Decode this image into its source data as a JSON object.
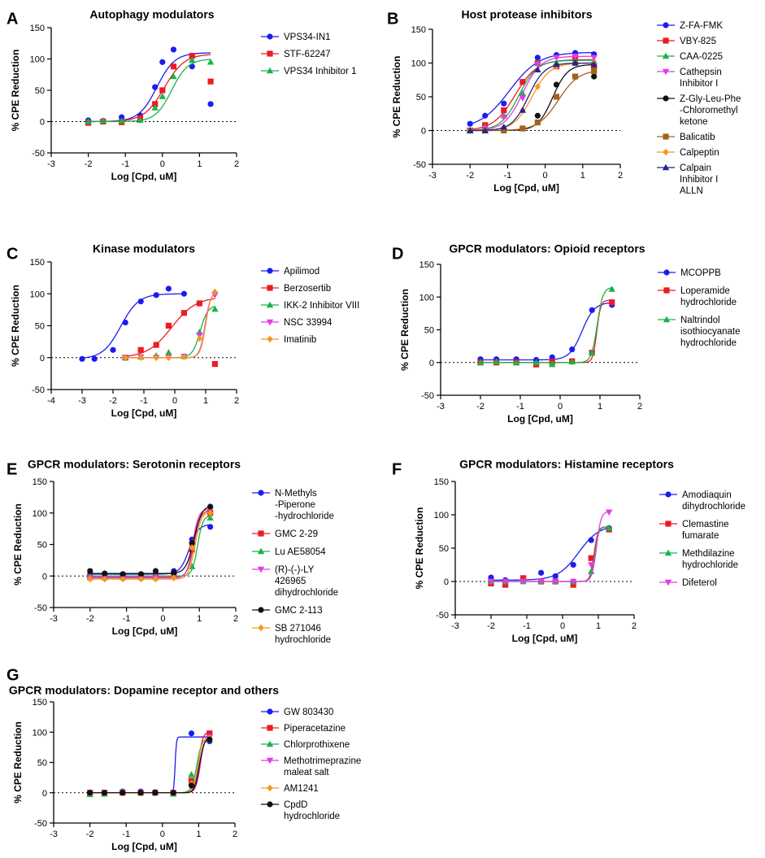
{
  "figure": {
    "colors": {
      "blue": "#1c1cf0",
      "red": "#ec1c24",
      "green": "#1ab24b",
      "magenta": "#e23be6",
      "black": "#111111",
      "brown": "#a3621d",
      "orange": "#f5961e",
      "navy": "#24248a"
    }
  },
  "chart_data": [
    {
      "type": "scatter",
      "panel": "A",
      "title": "Autophagy modulators",
      "xlabel": "Log [Cpd, uM]",
      "ylabel": "% CPE Reduction",
      "xlim": [
        -3,
        2
      ],
      "ylim": [
        -50,
        150
      ],
      "xticks": [
        -3,
        -2,
        -1,
        0,
        1,
        2
      ],
      "yticks": [
        -50,
        0,
        50,
        100,
        150
      ],
      "x": [
        -2.0,
        -1.6,
        -1.1,
        -0.6,
        -0.2,
        0.0,
        0.3,
        0.8,
        1.3
      ],
      "series": [
        {
          "name": "VPS34-IN1",
          "color": "blue",
          "marker": "circle",
          "values": [
            2,
            1,
            7,
            10,
            55,
            95,
            115,
            88,
            28
          ],
          "fit": {
            "bottom": 0,
            "top": 110,
            "ec50": -0.15,
            "hill": 1.8
          }
        },
        {
          "name": "STF-62247",
          "color": "red",
          "marker": "square",
          "values": [
            -2,
            0,
            -1,
            5,
            28,
            50,
            88,
            105,
            64
          ],
          "fit": {
            "bottom": 0,
            "top": 108,
            "ec50": 0.05,
            "hill": 1.6
          }
        },
        {
          "name": "VPS34 Inhibitor 1",
          "color": "green",
          "marker": "triangle",
          "values": [
            0,
            1,
            1,
            2,
            22,
            40,
            72,
            98,
            95
          ],
          "fit": {
            "bottom": 0,
            "top": 100,
            "ec50": 0.25,
            "hill": 2.0
          }
        }
      ]
    },
    {
      "type": "scatter",
      "panel": "B",
      "title": "Host protease inhibitors",
      "xlabel": "Log [Cpd, uM]",
      "ylabel": "% CPE Reduction",
      "xlim": [
        -3,
        2
      ],
      "ylim": [
        -50,
        150
      ],
      "xticks": [
        -3,
        -2,
        -1,
        0,
        1,
        2
      ],
      "yticks": [
        -50,
        0,
        50,
        100,
        150
      ],
      "x": [
        -2.0,
        -1.6,
        -1.1,
        -0.6,
        -0.2,
        0.3,
        0.8,
        1.3
      ],
      "series": [
        {
          "name": "Z-FA-FMK",
          "color": "blue",
          "marker": "circle",
          "values": [
            10,
            22,
            40,
            72,
            108,
            112,
            115,
            113
          ],
          "fit": {
            "bottom": 2,
            "top": 116,
            "ec50": -0.95,
            "hill": 1.1
          }
        },
        {
          "name": "VBY-825",
          "color": "red",
          "marker": "square",
          "values": [
            0,
            8,
            30,
            72,
            100,
            95,
            108,
            95
          ],
          "fit": {
            "bottom": 0,
            "top": 105,
            "ec50": -0.8,
            "hill": 1.5
          }
        },
        {
          "name": "CAA-0225",
          "color": "green",
          "marker": "triangle",
          "values": [
            0,
            5,
            22,
            55,
            100,
            100,
            102,
            103
          ],
          "fit": {
            "bottom": 0,
            "top": 104,
            "ec50": -0.7,
            "hill": 1.8
          }
        },
        {
          "name": "Cathepsin Inhibitor I",
          "color": "magenta",
          "marker": "triangle-down",
          "values": [
            0,
            3,
            20,
            48,
            98,
            108,
            110,
            108
          ],
          "fit": {
            "bottom": 0,
            "top": 110,
            "ec50": -0.6,
            "hill": 1.8
          }
        },
        {
          "name": "Z-Gly-Leu-Phe-Chloromethyl ketone",
          "color": "black",
          "marker": "circle",
          "values": [
            0,
            0,
            2,
            3,
            22,
            68,
            100,
            80
          ],
          "fit": {
            "bottom": 0,
            "top": 98,
            "ec50": 0.2,
            "hill": 2.2
          }
        },
        {
          "name": "Balicatib",
          "color": "brown",
          "marker": "square",
          "values": [
            0,
            0,
            0,
            3,
            12,
            50,
            80,
            88
          ],
          "fit": {
            "bottom": 0,
            "top": 90,
            "ec50": 0.35,
            "hill": 1.6
          }
        },
        {
          "name": "Calpeptin",
          "color": "orange",
          "marker": "diamond",
          "values": [
            0,
            0,
            5,
            30,
            65,
            95,
            100,
            100
          ],
          "fit": {
            "bottom": 0,
            "top": 100,
            "ec50": -0.35,
            "hill": 1.8
          }
        },
        {
          "name": "Calpain Inhibitor I ALLN",
          "color": "navy",
          "marker": "triangle",
          "values": [
            0,
            0,
            5,
            30,
            90,
            98,
            100,
            98
          ],
          "fit": {
            "bottom": 0,
            "top": 100,
            "ec50": -0.45,
            "hill": 2.0
          }
        }
      ]
    },
    {
      "type": "scatter",
      "panel": "C",
      "title": "Kinase modulators",
      "xlabel": "Log [Cpd, uM]",
      "ylabel": "% CPE Reduction",
      "xlim": [
        -4,
        2
      ],
      "ylim": [
        -50,
        150
      ],
      "xticks": [
        -4,
        -3,
        -2,
        -1,
        0,
        1,
        2
      ],
      "yticks": [
        -50,
        0,
        50,
        100,
        150
      ],
      "x": [
        -3.0,
        -2.6,
        -2.0,
        -1.6,
        -1.1,
        -0.6,
        -0.2,
        0.3,
        0.8,
        1.3
      ],
      "series": [
        {
          "name": "Apilimod",
          "color": "blue",
          "marker": "circle",
          "values": [
            -2,
            -2,
            12,
            55,
            88,
            98,
            108,
            100,
            null,
            null
          ],
          "fit": {
            "bottom": -2,
            "top": 100,
            "ec50": -1.75,
            "hill": 1.5
          }
        },
        {
          "name": "Berzosertib",
          "color": "red",
          "marker": "square",
          "values": [
            null,
            null,
            null,
            0,
            12,
            20,
            50,
            70,
            85,
            -10
          ],
          "fit": {
            "bottom": 0,
            "top": 95,
            "ec50": -0.1,
            "hill": 1.1
          }
        },
        {
          "name": "IKK-2 Inhibitor VIII",
          "color": "green",
          "marker": "triangle",
          "values": [
            null,
            null,
            null,
            0,
            1,
            3,
            8,
            2,
            40,
            76
          ],
          "fit": {
            "bottom": 0,
            "top": 82,
            "ec50": 0.82,
            "hill": 3.5
          }
        },
        {
          "name": "NSC 33994",
          "color": "magenta",
          "marker": "triangle-down",
          "values": [
            null,
            null,
            null,
            0,
            1,
            0,
            1,
            2,
            35,
            98
          ],
          "fit": {
            "bottom": 0,
            "top": 102,
            "ec50": 0.98,
            "hill": 5.0
          }
        },
        {
          "name": "Imatinib",
          "color": "orange",
          "marker": "diamond",
          "values": [
            null,
            null,
            null,
            0,
            0,
            0,
            0,
            1,
            30,
            103
          ],
          "fit": {
            "bottom": 0,
            "top": 104,
            "ec50": 1.0,
            "hill": 5.0
          }
        }
      ]
    },
    {
      "type": "scatter",
      "panel": "D",
      "title": "GPCR modulators: Opioid receptors",
      "xlabel": "Log [Cpd, uM]",
      "ylabel": "% CPE Reduction",
      "xlim": [
        -3,
        2
      ],
      "ylim": [
        -50,
        150
      ],
      "xticks": [
        -3,
        -2,
        -1,
        0,
        1,
        2
      ],
      "yticks": [
        -50,
        0,
        50,
        100,
        150
      ],
      "x": [
        -2.0,
        -1.6,
        -1.1,
        -0.6,
        -0.2,
        0.3,
        0.8,
        1.3
      ],
      "series": [
        {
          "name": "MCOPPB",
          "color": "blue",
          "marker": "circle",
          "values": [
            5,
            5,
            5,
            4,
            8,
            20,
            80,
            88
          ],
          "fit": {
            "bottom": 4,
            "top": 92,
            "ec50": 0.55,
            "hill": 2.8
          }
        },
        {
          "name": "Loperamide hydrochloride",
          "color": "red",
          "marker": "square",
          "values": [
            0,
            0,
            0,
            -3,
            1,
            2,
            15,
            92
          ],
          "fit": {
            "bottom": 0,
            "top": 95,
            "ec50": 0.92,
            "hill": 9.0
          }
        },
        {
          "name": "Naltrindol isothiocyanate hydrochloride",
          "color": "green",
          "marker": "triangle",
          "values": [
            0,
            1,
            0,
            0,
            -3,
            1,
            15,
            112
          ],
          "fit": {
            "bottom": 0,
            "top": 115,
            "ec50": 0.93,
            "hill": 6.0
          }
        }
      ]
    },
    {
      "type": "scatter",
      "panel": "E",
      "title": "GPCR modulators: Serotonin receptors",
      "xlabel": "Log [Cpd, uM]",
      "ylabel": "% CPE Reduction",
      "xlim": [
        -3,
        2
      ],
      "ylim": [
        -50,
        150
      ],
      "xticks": [
        -3,
        -2,
        -1,
        0,
        1,
        2
      ],
      "yticks": [
        -50,
        0,
        50,
        100,
        150
      ],
      "x": [
        -2.0,
        -1.6,
        -1.1,
        -0.6,
        -0.2,
        0.3,
        0.8,
        1.3
      ],
      "series": [
        {
          "name": "N-Methyls-Piperone-hydrochloride",
          "color": "blue",
          "marker": "circle",
          "values": [
            3,
            3,
            3,
            3,
            3,
            8,
            58,
            78
          ],
          "fit": {
            "bottom": 3,
            "top": 82,
            "ec50": 0.72,
            "hill": 3.5
          }
        },
        {
          "name": "GMC 2-29",
          "color": "red",
          "marker": "square",
          "values": [
            -2,
            -2,
            -2,
            -2,
            -2,
            2,
            42,
            100
          ],
          "fit": {
            "bottom": -2,
            "top": 104,
            "ec50": 0.85,
            "hill": 5.0
          }
        },
        {
          "name": "Lu AE58054",
          "color": "green",
          "marker": "triangle",
          "values": [
            0,
            0,
            0,
            0,
            0,
            0,
            15,
            92
          ],
          "fit": {
            "bottom": 0,
            "top": 96,
            "ec50": 0.95,
            "hill": 6.0
          }
        },
        {
          "name": "(R)-(-)-LY 426965 dihydrochloride",
          "color": "magenta",
          "marker": "triangle-down",
          "values": [
            -3,
            -3,
            -3,
            -3,
            -3,
            -2,
            50,
            105
          ],
          "fit": {
            "bottom": -3,
            "top": 106,
            "ec50": 0.82,
            "hill": 5.5
          }
        },
        {
          "name": "GMC 2-113",
          "color": "black",
          "marker": "circle",
          "values": [
            8,
            4,
            3,
            3,
            8,
            5,
            52,
            110
          ],
          "fit": {
            "bottom": 4,
            "top": 112,
            "ec50": 0.85,
            "hill": 4.0
          }
        },
        {
          "name": "SB 271046 hydrochloride",
          "color": "orange",
          "marker": "diamond",
          "values": [
            -5,
            -5,
            -5,
            -5,
            -5,
            -3,
            45,
            100
          ],
          "fit": {
            "bottom": -5,
            "top": 102,
            "ec50": 0.88,
            "hill": 5.0
          }
        }
      ]
    },
    {
      "type": "scatter",
      "panel": "F",
      "title": "GPCR modulators: Histamine receptors",
      "xlabel": "Log [Cpd, uM]",
      "ylabel": "% CPE Reduction",
      "xlim": [
        -3,
        2
      ],
      "ylim": [
        -50,
        150
      ],
      "xticks": [
        -3,
        -2,
        -1,
        0,
        1,
        2
      ],
      "yticks": [
        -50,
        0,
        50,
        100,
        150
      ],
      "x": [
        -2.0,
        -1.6,
        -1.1,
        -0.6,
        -0.2,
        0.3,
        0.8,
        1.3
      ],
      "series": [
        {
          "name": "Amodiaquin dihydrochloride",
          "color": "blue",
          "marker": "circle",
          "values": [
            6,
            2,
            2,
            13,
            8,
            25,
            62,
            80
          ],
          "fit": {
            "bottom": 2,
            "top": 85,
            "ec50": 0.45,
            "hill": 1.5
          }
        },
        {
          "name": "Clemastine fumarate",
          "color": "red",
          "marker": "square",
          "values": [
            -3,
            -5,
            5,
            0,
            0,
            -5,
            35,
            78
          ],
          "fit": {
            "bottom": 0,
            "top": 82,
            "ec50": 0.88,
            "hill": 8.0
          }
        },
        {
          "name": "Methdilazine hydrochloride",
          "color": "green",
          "marker": "triangle",
          "values": [
            0,
            0,
            0,
            0,
            0,
            0,
            15,
            80
          ],
          "fit": {
            "bottom": 0,
            "top": 82,
            "ec50": 0.9,
            "hill": 8.0
          }
        },
        {
          "name": "Difeterol",
          "color": "magenta",
          "marker": "triangle-down",
          "values": [
            0,
            0,
            0,
            0,
            0,
            0,
            25,
            104
          ],
          "fit": {
            "bottom": 0,
            "top": 105,
            "ec50": 0.95,
            "hill": 7.0
          }
        }
      ]
    },
    {
      "type": "scatter",
      "panel": "G",
      "title": "GPCR modulators: Dopamine receptor and others",
      "xlabel": "Log [Cpd, uM]",
      "ylabel": "% CPE Reduction",
      "xlim": [
        -3,
        2
      ],
      "ylim": [
        -50,
        150
      ],
      "xticks": [
        -3,
        -2,
        -1,
        0,
        1,
        2
      ],
      "yticks": [
        -50,
        0,
        50,
        100,
        150
      ],
      "x": [
        -2.0,
        -1.6,
        -1.1,
        -0.6,
        -0.2,
        0.3,
        0.8,
        1.3
      ],
      "series": [
        {
          "name": "GW 803430",
          "color": "blue",
          "marker": "circle",
          "values": [
            0,
            0,
            2,
            2,
            1,
            0,
            98,
            85
          ],
          "fit": {
            "bottom": 0,
            "top": 92,
            "ec50": 0.35,
            "hill": 25.0
          }
        },
        {
          "name": "Piperacetazine",
          "color": "red",
          "marker": "square",
          "values": [
            0,
            0,
            0,
            0,
            0,
            0,
            20,
            98
          ],
          "fit": {
            "bottom": 0,
            "top": 100,
            "ec50": 1.0,
            "hill": 8.0
          }
        },
        {
          "name": "Chlorprothixene",
          "color": "green",
          "marker": "triangle",
          "values": [
            -3,
            -2,
            2,
            1,
            0,
            -2,
            30,
            88
          ],
          "fit": {
            "bottom": 0,
            "top": 92,
            "ec50": 0.95,
            "hill": 6.0
          }
        },
        {
          "name": "Methotrimeprazine maleat salt",
          "color": "magenta",
          "marker": "triangle-down",
          "values": [
            0,
            0,
            0,
            0,
            0,
            0,
            10,
            92
          ],
          "fit": {
            "bottom": 0,
            "top": 96,
            "ec50": 1.05,
            "hill": 7.0
          }
        },
        {
          "name": "AM1241",
          "color": "orange",
          "marker": "diamond",
          "values": [
            0,
            0,
            0,
            0,
            0,
            0,
            15,
            90
          ],
          "fit": {
            "bottom": 0,
            "top": 92,
            "ec50": 0.98,
            "hill": 7.0
          }
        },
        {
          "name": "CpdD hydrochloride",
          "color": "black",
          "marker": "circle",
          "values": [
            0,
            0,
            0,
            0,
            0,
            0,
            12,
            88
          ],
          "fit": {
            "bottom": 0,
            "top": 90,
            "ec50": 1.02,
            "hill": 7.0
          }
        }
      ]
    }
  ]
}
